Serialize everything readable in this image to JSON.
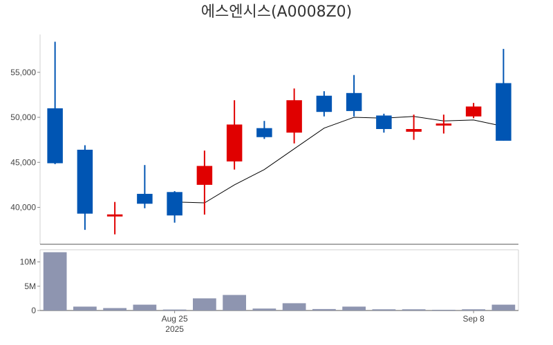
{
  "chart_data": {
    "type": "candlestick",
    "title": "에스엔시스(A0008Z0)",
    "up_color": "#e00000",
    "down_color": "#0055b3",
    "ma_color": "#000000",
    "volume_color": "#8e95b0",
    "price_ylim": [
      35900,
      59200
    ],
    "price_ticks": [
      40000,
      45000,
      50000,
      55000
    ],
    "price_tick_labels": [
      "40,000",
      "45,000",
      "50,000",
      "55,000"
    ],
    "volume_ylim": [
      0,
      12500000
    ],
    "volume_ticks": [
      0,
      5000000,
      10000000
    ],
    "volume_tick_labels": [
      "0",
      "5M",
      "10M"
    ],
    "x_ticks": [
      {
        "index": 4,
        "label": "Aug 25",
        "sublabel": "2025"
      },
      {
        "index": 14,
        "label": "Sep 8",
        "sublabel": ""
      }
    ],
    "candles": [
      {
        "date": "2025-08-19",
        "open": 51000,
        "high": 58400,
        "low": 44800,
        "close": 44900,
        "volume": 12000000,
        "ma": null
      },
      {
        "date": "2025-08-20",
        "open": 46400,
        "high": 46900,
        "low": 37500,
        "close": 39300,
        "volume": 800000,
        "ma": null
      },
      {
        "date": "2025-08-21",
        "open": 39100,
        "high": 40600,
        "low": 37000,
        "close": 39100,
        "volume": 500000,
        "ma": null
      },
      {
        "date": "2025-08-22",
        "open": 41500,
        "high": 44700,
        "low": 39900,
        "close": 40400,
        "volume": 1200000,
        "ma": null
      },
      {
        "date": "2025-08-25",
        "open": 41700,
        "high": 41800,
        "low": 38300,
        "close": 39100,
        "volume": 200000,
        "ma": 40600
      },
      {
        "date": "2025-08-26",
        "open": 42500,
        "high": 46300,
        "low": 39200,
        "close": 44600,
        "volume": 2500000,
        "ma": 40500
      },
      {
        "date": "2025-08-27",
        "open": 45100,
        "high": 51900,
        "low": 44200,
        "close": 49200,
        "volume": 3200000,
        "ma": 42500
      },
      {
        "date": "2025-08-28",
        "open": 48800,
        "high": 49600,
        "low": 47600,
        "close": 47800,
        "volume": 400000,
        "ma": 44200
      },
      {
        "date": "2025-08-29",
        "open": 48300,
        "high": 53200,
        "low": 47100,
        "close": 51900,
        "volume": 1500000,
        "ma": 46500
      },
      {
        "date": "2025-09-01",
        "open": 52400,
        "high": 52900,
        "low": 50100,
        "close": 50600,
        "volume": 300000,
        "ma": 48800
      },
      {
        "date": "2025-09-02",
        "open": 52700,
        "high": 54700,
        "low": 50100,
        "close": 50700,
        "volume": 800000,
        "ma": 50000
      },
      {
        "date": "2025-09-03",
        "open": 50200,
        "high": 50400,
        "low": 48300,
        "close": 48700,
        "volume": 250000,
        "ma": 49900
      },
      {
        "date": "2025-09-04",
        "open": 48400,
        "high": 50300,
        "low": 47500,
        "close": 48700,
        "volume": 250000,
        "ma": 50100
      },
      {
        "date": "2025-09-05",
        "open": 49100,
        "high": 50300,
        "low": 48200,
        "close": 49300,
        "volume": 150000,
        "ma": 49600
      },
      {
        "date": "2025-09-08",
        "open": 50100,
        "high": 51600,
        "low": 49900,
        "close": 51200,
        "volume": 250000,
        "ma": 49700
      },
      {
        "date": "2025-09-09",
        "open": 53800,
        "high": 57600,
        "low": 47400,
        "close": 47400,
        "volume": 1200000,
        "ma": 49000
      }
    ]
  }
}
